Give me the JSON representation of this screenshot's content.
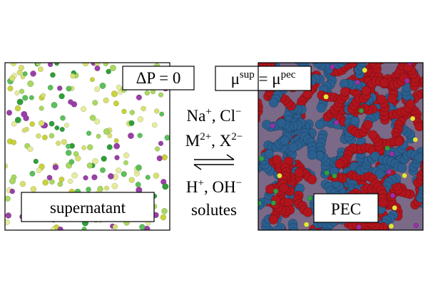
{
  "supernatant": {
    "label": "supernatant",
    "condition": [
      {
        "t": "ΔP = 0"
      }
    ]
  },
  "pec": {
    "label": "PEC",
    "condition": [
      {
        "t": "μ",
        "sup": "sup"
      },
      {
        "t": " = μ",
        "sup": "pec"
      }
    ]
  },
  "exchange": {
    "lines": [
      [
        {
          "t": "Na",
          "sup": "+"
        },
        {
          "t": ", Cl",
          "sup": "−"
        }
      ],
      [
        {
          "t": "M",
          "sup": "2+"
        },
        {
          "t": ", X",
          "sup": "2−"
        }
      ],
      [
        {
          "t": "H",
          "sup": "+"
        },
        {
          "t": ", OH",
          "sup": "−"
        }
      ],
      [
        {
          "t": "solutes"
        }
      ]
    ]
  }
}
